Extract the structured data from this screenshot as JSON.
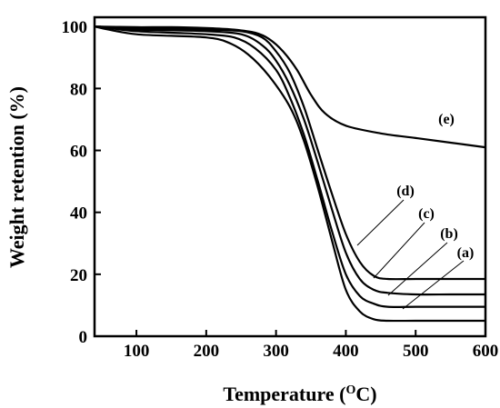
{
  "chart_data": {
    "type": "line",
    "xlabel": "Temperature (",
    "xlabel_sup": "O",
    "xlabel_suffix": "C)",
    "ylabel": "Weight retention (%)",
    "xlim": [
      40,
      600
    ],
    "ylim": [
      0,
      103
    ],
    "x_ticks": [
      100,
      200,
      300,
      400,
      500,
      600
    ],
    "y_ticks": [
      0,
      20,
      40,
      60,
      80,
      100
    ],
    "grid": false,
    "series": [
      {
        "name": "(a)",
        "x": [
          40,
          60,
          100,
          150,
          200,
          230,
          260,
          290,
          320,
          340,
          360,
          380,
          400,
          420,
          440,
          460,
          500,
          550,
          600
        ],
        "y": [
          100,
          99,
          97.5,
          97,
          96.5,
          95,
          91,
          84,
          74,
          63,
          48,
          31,
          15,
          8,
          5.5,
          5,
          5,
          5,
          5
        ]
      },
      {
        "name": "(b)",
        "x": [
          40,
          60,
          100,
          150,
          200,
          240,
          270,
          300,
          320,
          340,
          360,
          380,
          400,
          420,
          440,
          460,
          500,
          550,
          600
        ],
        "y": [
          100,
          99.5,
          98.5,
          98,
          97.5,
          96.5,
          93,
          86,
          77,
          65,
          50,
          34,
          20,
          13,
          10.5,
          9.5,
          9.5,
          9.5,
          9.5
        ]
      },
      {
        "name": "(c)",
        "x": [
          40,
          60,
          100,
          150,
          200,
          250,
          280,
          300,
          320,
          340,
          360,
          380,
          400,
          420,
          440,
          460,
          500,
          550,
          600
        ],
        "y": [
          100,
          99.5,
          99,
          98.8,
          98.5,
          97.5,
          94,
          89,
          81,
          70,
          56,
          41,
          27,
          18.5,
          15,
          14,
          13.5,
          13.5,
          13.5
        ]
      },
      {
        "name": "(d)",
        "x": [
          40,
          60,
          100,
          150,
          200,
          250,
          280,
          300,
          320,
          340,
          360,
          380,
          400,
          420,
          440,
          460,
          500,
          550,
          600
        ],
        "y": [
          100,
          99.8,
          99.5,
          99.3,
          99,
          98.5,
          96.5,
          92,
          85,
          74,
          60,
          46,
          33,
          24,
          19.5,
          18.5,
          18.5,
          18.5,
          18.5
        ]
      },
      {
        "name": "(e)",
        "x": [
          40,
          100,
          150,
          200,
          240,
          270,
          290,
          310,
          330,
          350,
          370,
          400,
          450,
          500,
          550,
          600
        ],
        "y": [
          100,
          99.8,
          99.8,
          99.5,
          99,
          98,
          96,
          92,
          86,
          78,
          72,
          68,
          65.5,
          64,
          62.5,
          61
        ]
      }
    ]
  }
}
